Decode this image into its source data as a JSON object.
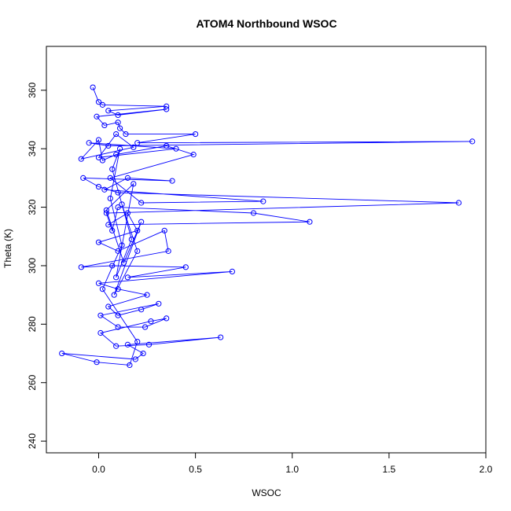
{
  "chart_data": {
    "type": "line",
    "title": "ATOM4 Northbound WSOC",
    "xlabel": "WSOC",
    "ylabel": "Theta (K)",
    "xlim": [
      -0.27,
      2.0
    ],
    "ylim": [
      236,
      375
    ],
    "xticks": [
      0.0,
      0.5,
      1.0,
      1.5,
      2.0
    ],
    "xtick_labels": [
      "0.0",
      "0.5",
      "1.0",
      "1.5",
      "2.0"
    ],
    "yticks": [
      240,
      260,
      280,
      300,
      320,
      340,
      360
    ],
    "ytick_labels": [
      "240",
      "260",
      "280",
      "300",
      "320",
      "340",
      "360"
    ],
    "grid": false,
    "color": "#0000ff",
    "marker": "open-circle",
    "series": [
      {
        "name": "",
        "points": [
          [
            -0.03,
            361
          ],
          [
            0.0,
            356
          ],
          [
            0.02,
            355
          ],
          [
            0.35,
            354.5
          ],
          [
            0.05,
            353
          ],
          [
            0.1,
            351.5
          ],
          [
            0.35,
            353.5
          ],
          [
            -0.01,
            351
          ],
          [
            0.03,
            348
          ],
          [
            0.1,
            349
          ],
          [
            0.11,
            347
          ],
          [
            0.14,
            345
          ],
          [
            0.5,
            345
          ],
          [
            0.2,
            342
          ],
          [
            1.93,
            342.5
          ],
          [
            0.05,
            341
          ],
          [
            -0.05,
            342
          ],
          [
            0.4,
            340
          ],
          [
            0.0,
            337
          ],
          [
            0.09,
            345
          ],
          [
            0.18,
            340.5
          ],
          [
            -0.09,
            336.5
          ],
          [
            0.0,
            343
          ],
          [
            0.02,
            336
          ],
          [
            0.09,
            338
          ],
          [
            0.35,
            341
          ],
          [
            0.49,
            338
          ],
          [
            0.06,
            330
          ],
          [
            0.22,
            321.5
          ],
          [
            0.85,
            322
          ],
          [
            0.03,
            326
          ],
          [
            0.15,
            330
          ],
          [
            0.38,
            329
          ],
          [
            -0.08,
            330
          ],
          [
            0.0,
            327
          ],
          [
            0.1,
            325
          ],
          [
            1.86,
            321.5
          ],
          [
            0.04,
            318
          ],
          [
            0.07,
            312
          ],
          [
            0.1,
            320
          ],
          [
            0.8,
            318
          ],
          [
            1.09,
            315
          ],
          [
            0.05,
            314
          ],
          [
            0.15,
            318
          ],
          [
            0.2,
            312
          ],
          [
            0.0,
            308
          ],
          [
            0.1,
            305
          ],
          [
            0.34,
            312
          ],
          [
            0.36,
            305
          ],
          [
            -0.09,
            299.5
          ],
          [
            0.07,
            300
          ],
          [
            0.45,
            299.5
          ],
          [
            0.15,
            296
          ],
          [
            0.69,
            298
          ],
          [
            0.0,
            294
          ],
          [
            0.1,
            292
          ],
          [
            0.25,
            290
          ],
          [
            0.05,
            286
          ],
          [
            0.1,
            283
          ],
          [
            0.22,
            285
          ],
          [
            0.31,
            287
          ],
          [
            0.01,
            283
          ],
          [
            0.1,
            279
          ],
          [
            0.24,
            279
          ],
          [
            0.35,
            282
          ],
          [
            0.27,
            281
          ],
          [
            0.01,
            277
          ],
          [
            0.09,
            272.5
          ],
          [
            0.26,
            273
          ],
          [
            0.63,
            275.5
          ],
          [
            0.15,
            273
          ],
          [
            0.23,
            270
          ],
          [
            0.19,
            268
          ],
          [
            -0.19,
            270
          ],
          [
            -0.01,
            267
          ],
          [
            0.16,
            266
          ],
          [
            0.2,
            274
          ],
          [
            0.02,
            292
          ],
          [
            0.12,
            307
          ],
          [
            0.06,
            323
          ],
          [
            0.11,
            340
          ],
          [
            0.07,
            333
          ],
          [
            0.17,
            309
          ],
          [
            0.09,
            296
          ],
          [
            0.18,
            328
          ],
          [
            0.04,
            319
          ],
          [
            0.13,
            301
          ],
          [
            0.22,
            315
          ],
          [
            0.08,
            290
          ],
          [
            0.2,
            305
          ],
          [
            0.12,
            321
          ]
        ]
      }
    ]
  }
}
